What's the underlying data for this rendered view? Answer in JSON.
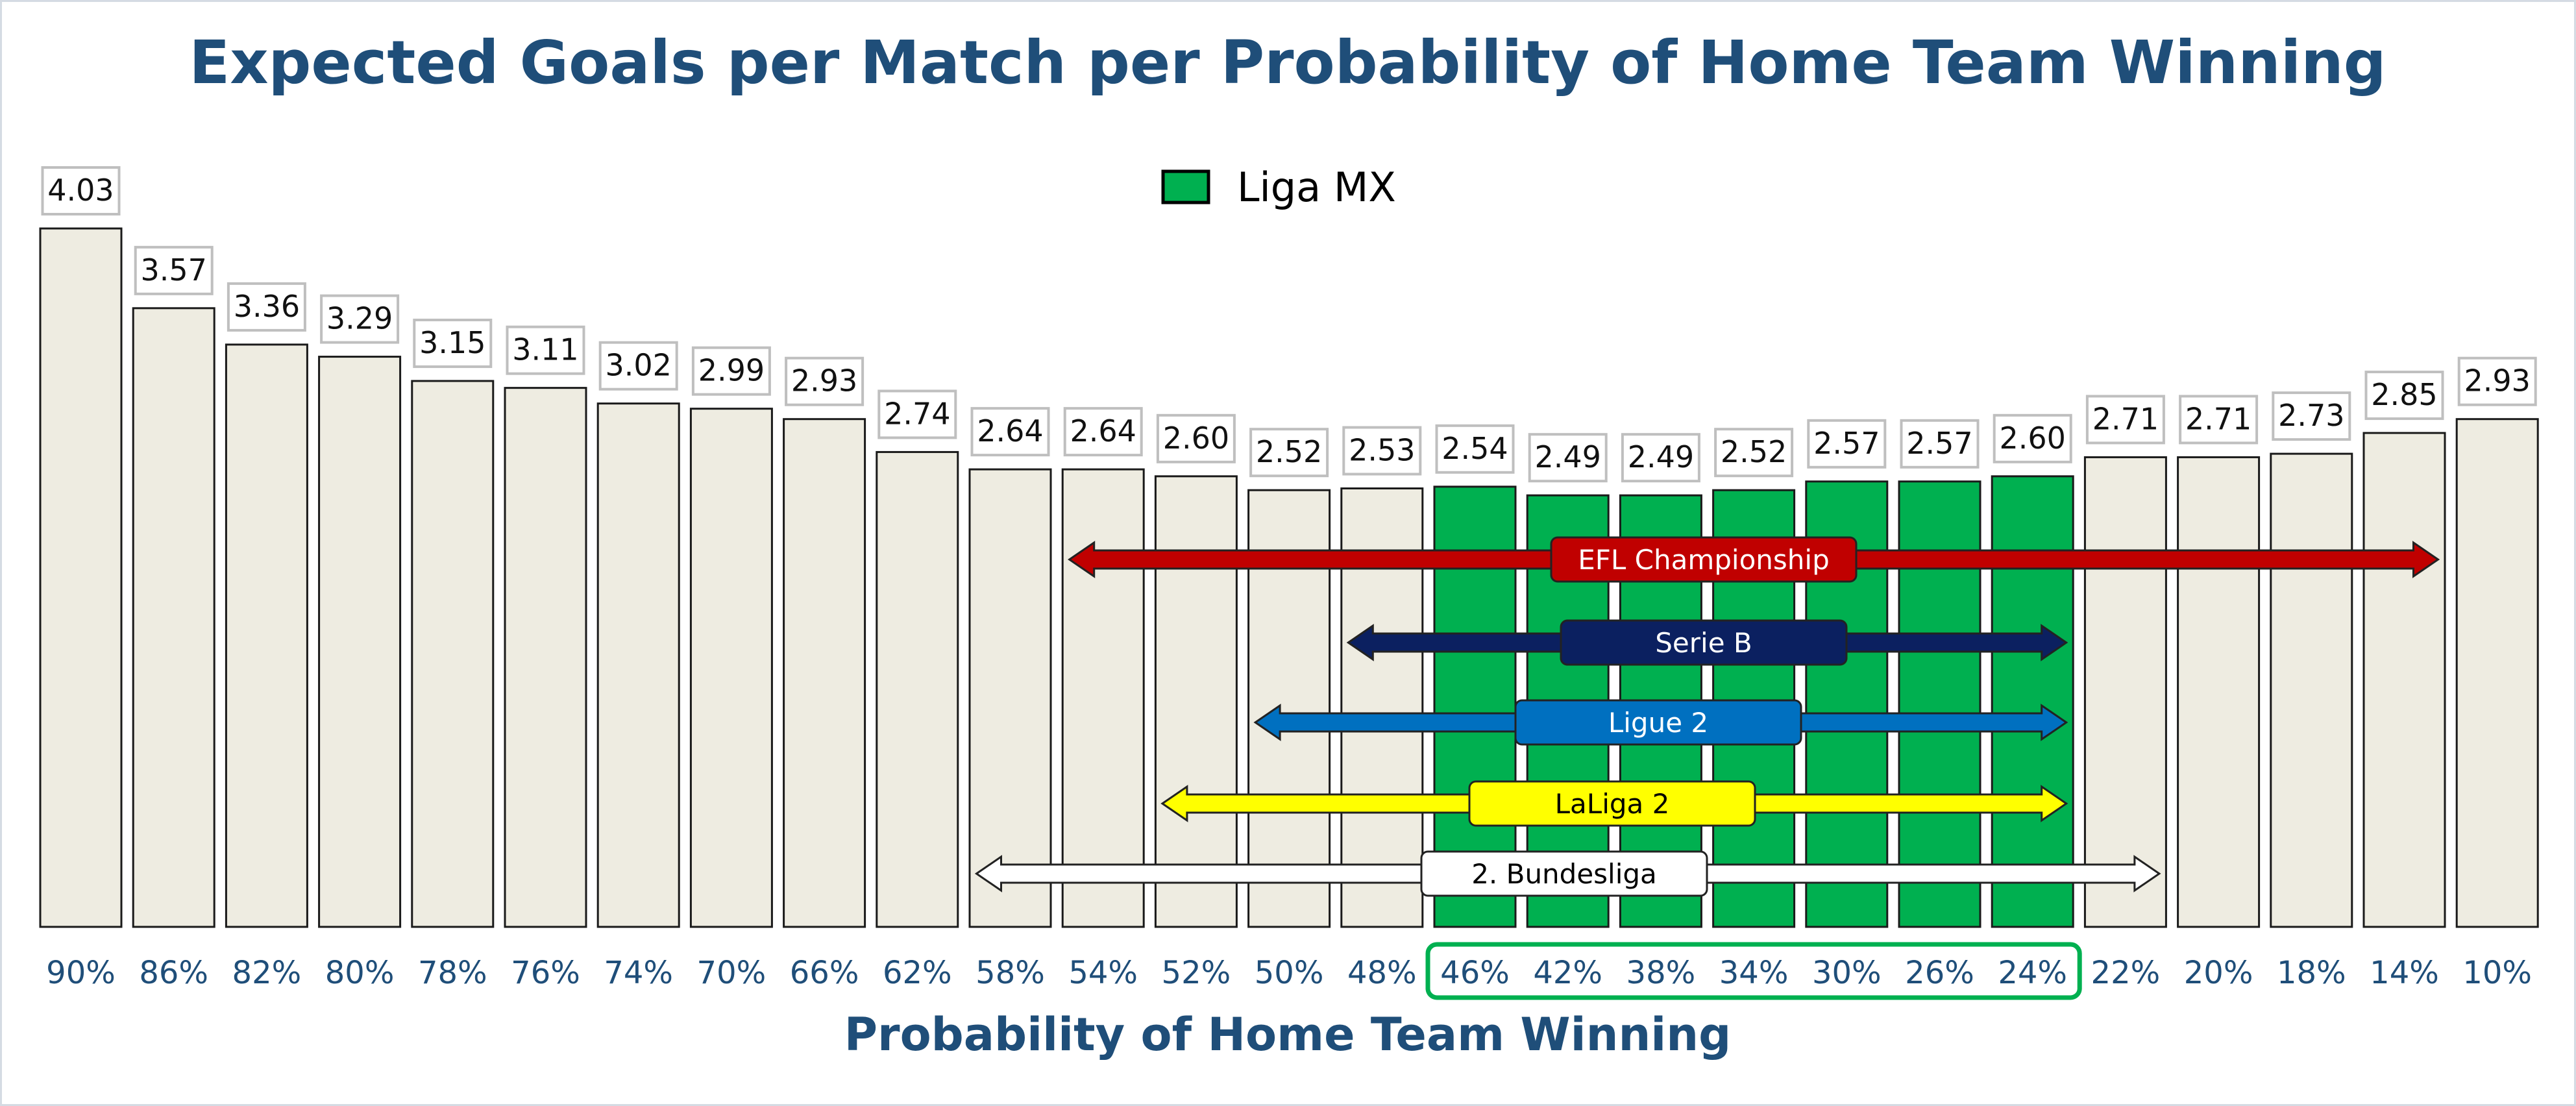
{
  "chart_data": {
    "type": "bar",
    "title": "Expected Goals per Match per Probability of Home Team Winning",
    "xlabel": "Probability of Home Team Winning",
    "ylabel": "",
    "categories": [
      "90%",
      "86%",
      "82%",
      "80%",
      "78%",
      "76%",
      "74%",
      "70%",
      "66%",
      "62%",
      "58%",
      "54%",
      "52%",
      "50%",
      "48%",
      "46%",
      "42%",
      "38%",
      "34%",
      "30%",
      "26%",
      "24%",
      "22%",
      "20%",
      "18%",
      "14%",
      "10%"
    ],
    "values": [
      4.03,
      3.57,
      3.36,
      3.29,
      3.15,
      3.11,
      3.02,
      2.99,
      2.93,
      2.74,
      2.64,
      2.64,
      2.6,
      2.52,
      2.53,
      2.54,
      2.49,
      2.49,
      2.52,
      2.57,
      2.57,
      2.6,
      2.71,
      2.71,
      2.73,
      2.85,
      2.93
    ],
    "value_labels": [
      "4.03",
      "3.57",
      "3.36",
      "3.29",
      "3.15",
      "3.11",
      "3.02",
      "2.99",
      "2.93",
      "2.74",
      "2.64",
      "2.64",
      "2.60",
      "2.52",
      "2.53",
      "2.54",
      "2.49",
      "2.49",
      "2.52",
      "2.57",
      "2.57",
      "2.60",
      "2.71",
      "2.71",
      "2.73",
      "2.85",
      "2.93"
    ],
    "ylim": [
      0,
      4.03
    ],
    "grid": false,
    "legend": {
      "position": "top-center",
      "label": "Liga MX",
      "color": "#00b050"
    },
    "highlight": {
      "series_name": "Liga MX",
      "from_category": "46%",
      "to_category": "24%",
      "color": "#00b050"
    },
    "default_bar_color": "#eeece1",
    "ranges": [
      {
        "label": "EFL Championship",
        "from_category": "54%",
        "to_category": "14%",
        "color": "#c00000",
        "text_color": "#ffffff"
      },
      {
        "label": "Serie B",
        "from_category": "48%",
        "to_category": "24%",
        "color": "#0b2060",
        "text_color": "#ffffff"
      },
      {
        "label": "Ligue 2",
        "from_category": "50%",
        "to_category": "24%",
        "color": "#0070c0",
        "text_color": "#ffffff"
      },
      {
        "label": "LaLiga 2",
        "from_category": "52%",
        "to_category": "24%",
        "color": "#ffff00",
        "text_color": "#000000"
      },
      {
        "label": "2. Bundesliga",
        "from_category": "58%",
        "to_category": "22%",
        "color": "#ffffff",
        "text_color": "#000000"
      }
    ]
  }
}
